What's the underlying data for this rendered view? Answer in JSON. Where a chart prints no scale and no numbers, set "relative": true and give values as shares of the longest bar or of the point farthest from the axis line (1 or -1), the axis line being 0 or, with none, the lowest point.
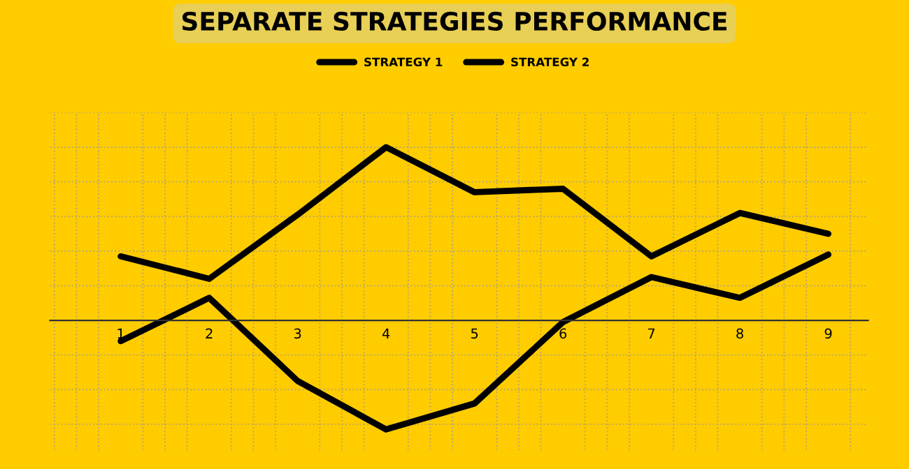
{
  "chart_data": {
    "type": "line",
    "title": "SEPARATE STRATEGIES PERFORMANCE",
    "relative": true,
    "categories": [
      "1",
      "2",
      "3",
      "4",
      "5",
      "6",
      "7",
      "8",
      "9"
    ],
    "series": [
      {
        "name": "STRATEGY 1",
        "color": "#000000",
        "values": [
          0.37,
          0.24,
          0.61,
          1,
          0.74,
          0.76,
          0.37,
          0.62,
          0.5
        ]
      },
      {
        "name": "STRATEGY 2",
        "color": "#000000",
        "values": [
          -0.12,
          0.13,
          -0.35,
          -0.63,
          -0.48,
          -0.01,
          0.25,
          0.13,
          0.38
        ]
      }
    ],
    "grid": true,
    "legend": "top",
    "marker": "none",
    "line_style": "solid"
  }
}
